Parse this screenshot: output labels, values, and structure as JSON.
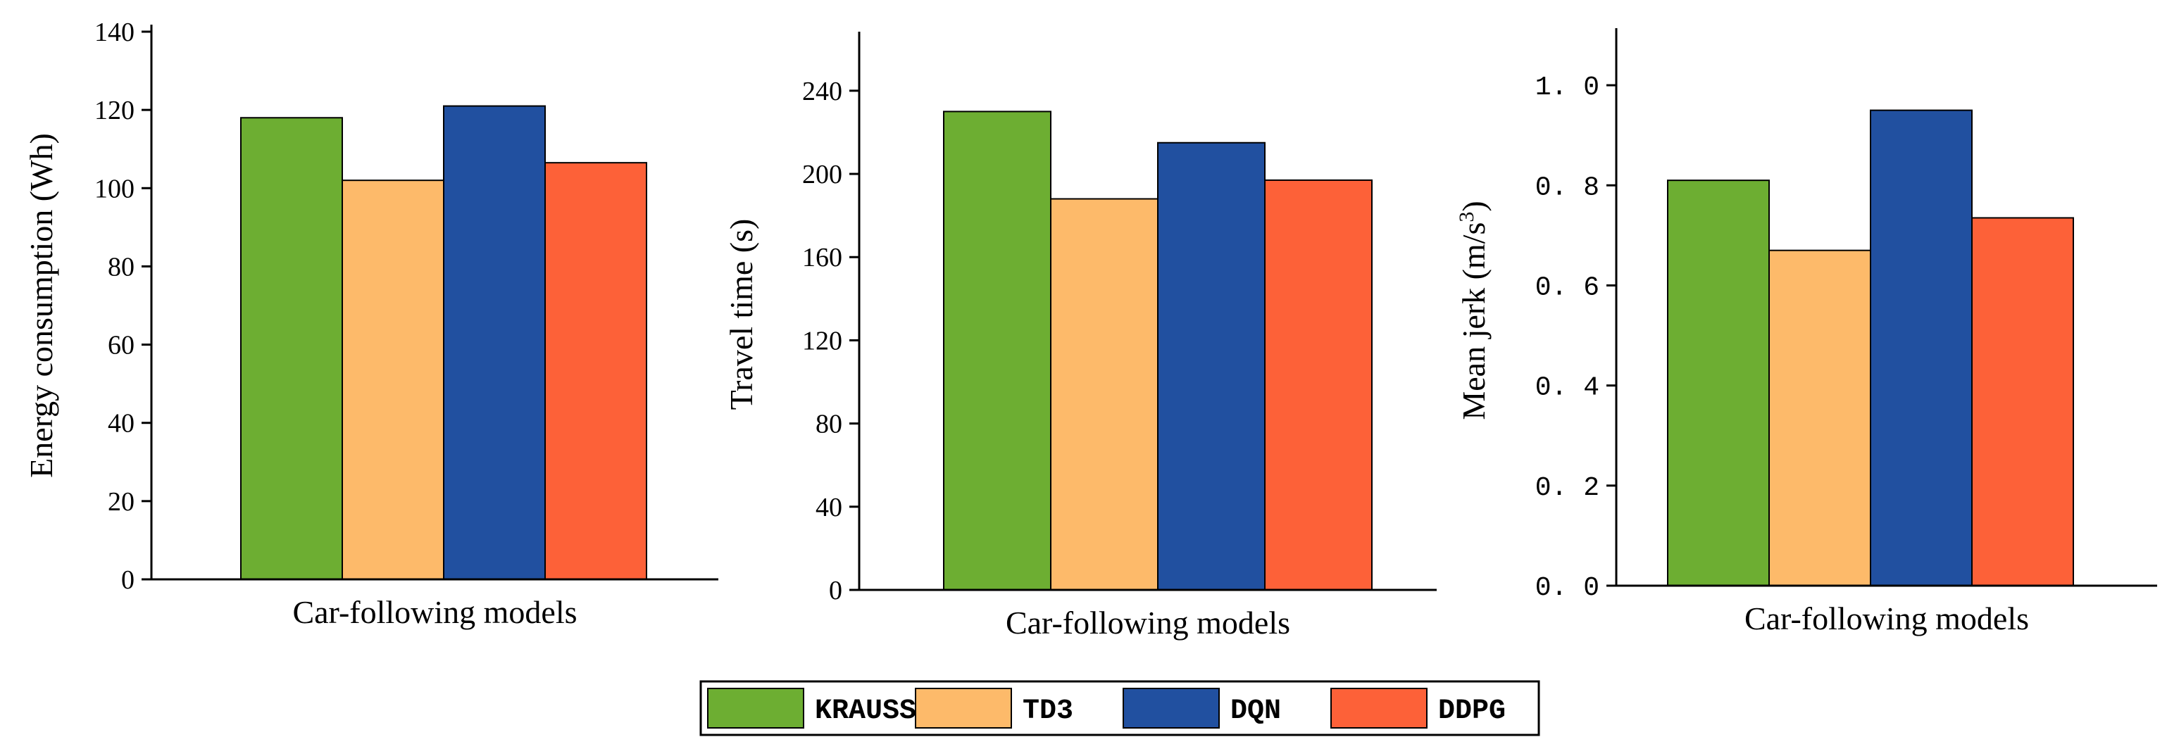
{
  "chart_data": [
    {
      "type": "bar",
      "categories": [
        "KRAUSS",
        "TD3",
        "DQN",
        "DDPG"
      ],
      "values": [
        118,
        102,
        121,
        106.5
      ],
      "xlabel": "Car-following models",
      "ylabel": "Energy consumption (Wh)",
      "ylim": [
        0,
        140
      ],
      "yticks": [
        "0",
        "20",
        "40",
        "60",
        "80",
        "100",
        "120",
        "140"
      ]
    },
    {
      "type": "bar",
      "categories": [
        "KRAUSS",
        "TD3",
        "DQN",
        "DDPG"
      ],
      "values": [
        230,
        188,
        215,
        197
      ],
      "xlabel": "Car-following models",
      "ylabel": "Travel time (s)",
      "ylim": [
        0,
        265
      ],
      "yticks": [
        "0",
        "40",
        "80",
        "120",
        "160",
        "200",
        "240"
      ]
    },
    {
      "type": "bar",
      "categories": [
        "KRAUSS",
        "TD3",
        "DQN",
        "DDPG"
      ],
      "values": [
        0.81,
        0.67,
        0.95,
        0.735
      ],
      "xlabel": "Car-following models",
      "ylabel": "Mean jerk (m/s3)",
      "ylabel_main": "Mean jerk (m/s",
      "ylabel_sup": "3",
      "ylabel_end": ")",
      "ylim": [
        0,
        1.1
      ],
      "yticks": [
        "0. 0",
        "0. 2",
        "0. 4",
        "0. 6",
        "0. 8",
        "1. 0"
      ]
    }
  ],
  "legend": {
    "items": [
      {
        "label": "KRAUSS",
        "color": "#6DAE32"
      },
      {
        "label": "TD3",
        "color": "#FDBA6A"
      },
      {
        "label": "DQN",
        "color": "#2150A0"
      },
      {
        "label": "DDPG",
        "color": "#FD6138"
      }
    ]
  }
}
